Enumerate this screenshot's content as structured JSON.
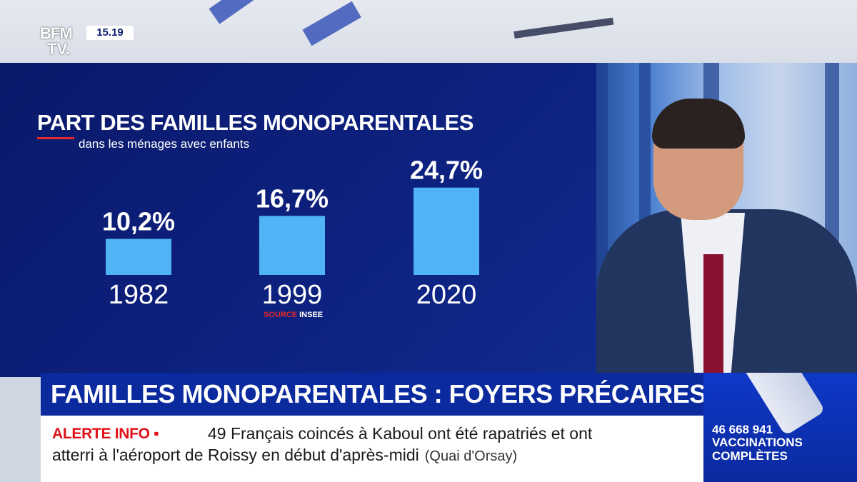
{
  "channel": {
    "logo_line1": "BFM",
    "logo_line2": "TV.",
    "time": "15.19"
  },
  "chart_data": {
    "type": "bar",
    "title": "PART DES FAMILLES MONOPARENTALES",
    "subtitle": "dans les ménages avec enfants",
    "categories": [
      "1982",
      "1999",
      "2020"
    ],
    "values": [
      10.2,
      16.7,
      24.7
    ],
    "value_labels": [
      "10,2%",
      "16,7%",
      "24,7%"
    ],
    "bar_color": "#4fb3f5",
    "source_label": "SOURCE",
    "source_name": "INSEE"
  },
  "headline": {
    "text": "FAMILLES MONOPARENTALES : FOYERS PRÉCAIRES"
  },
  "ticker": {
    "alert_label": "ALERTE INFO ▪",
    "line1": "49 Français coincés à Kaboul ont été rapatriés et ont",
    "line2": "atterri à l'aéroport de Roissy en début d'après-midi",
    "source": "(Quai d'Orsay)"
  },
  "vaccination": {
    "count": "46 668 941",
    "label": "VACCINATIONS COMPLÈTES"
  },
  "colors": {
    "panel_blue": "#0c1f7a",
    "accent_red": "#e3282b",
    "headline_blue": "#0a2a9e"
  }
}
